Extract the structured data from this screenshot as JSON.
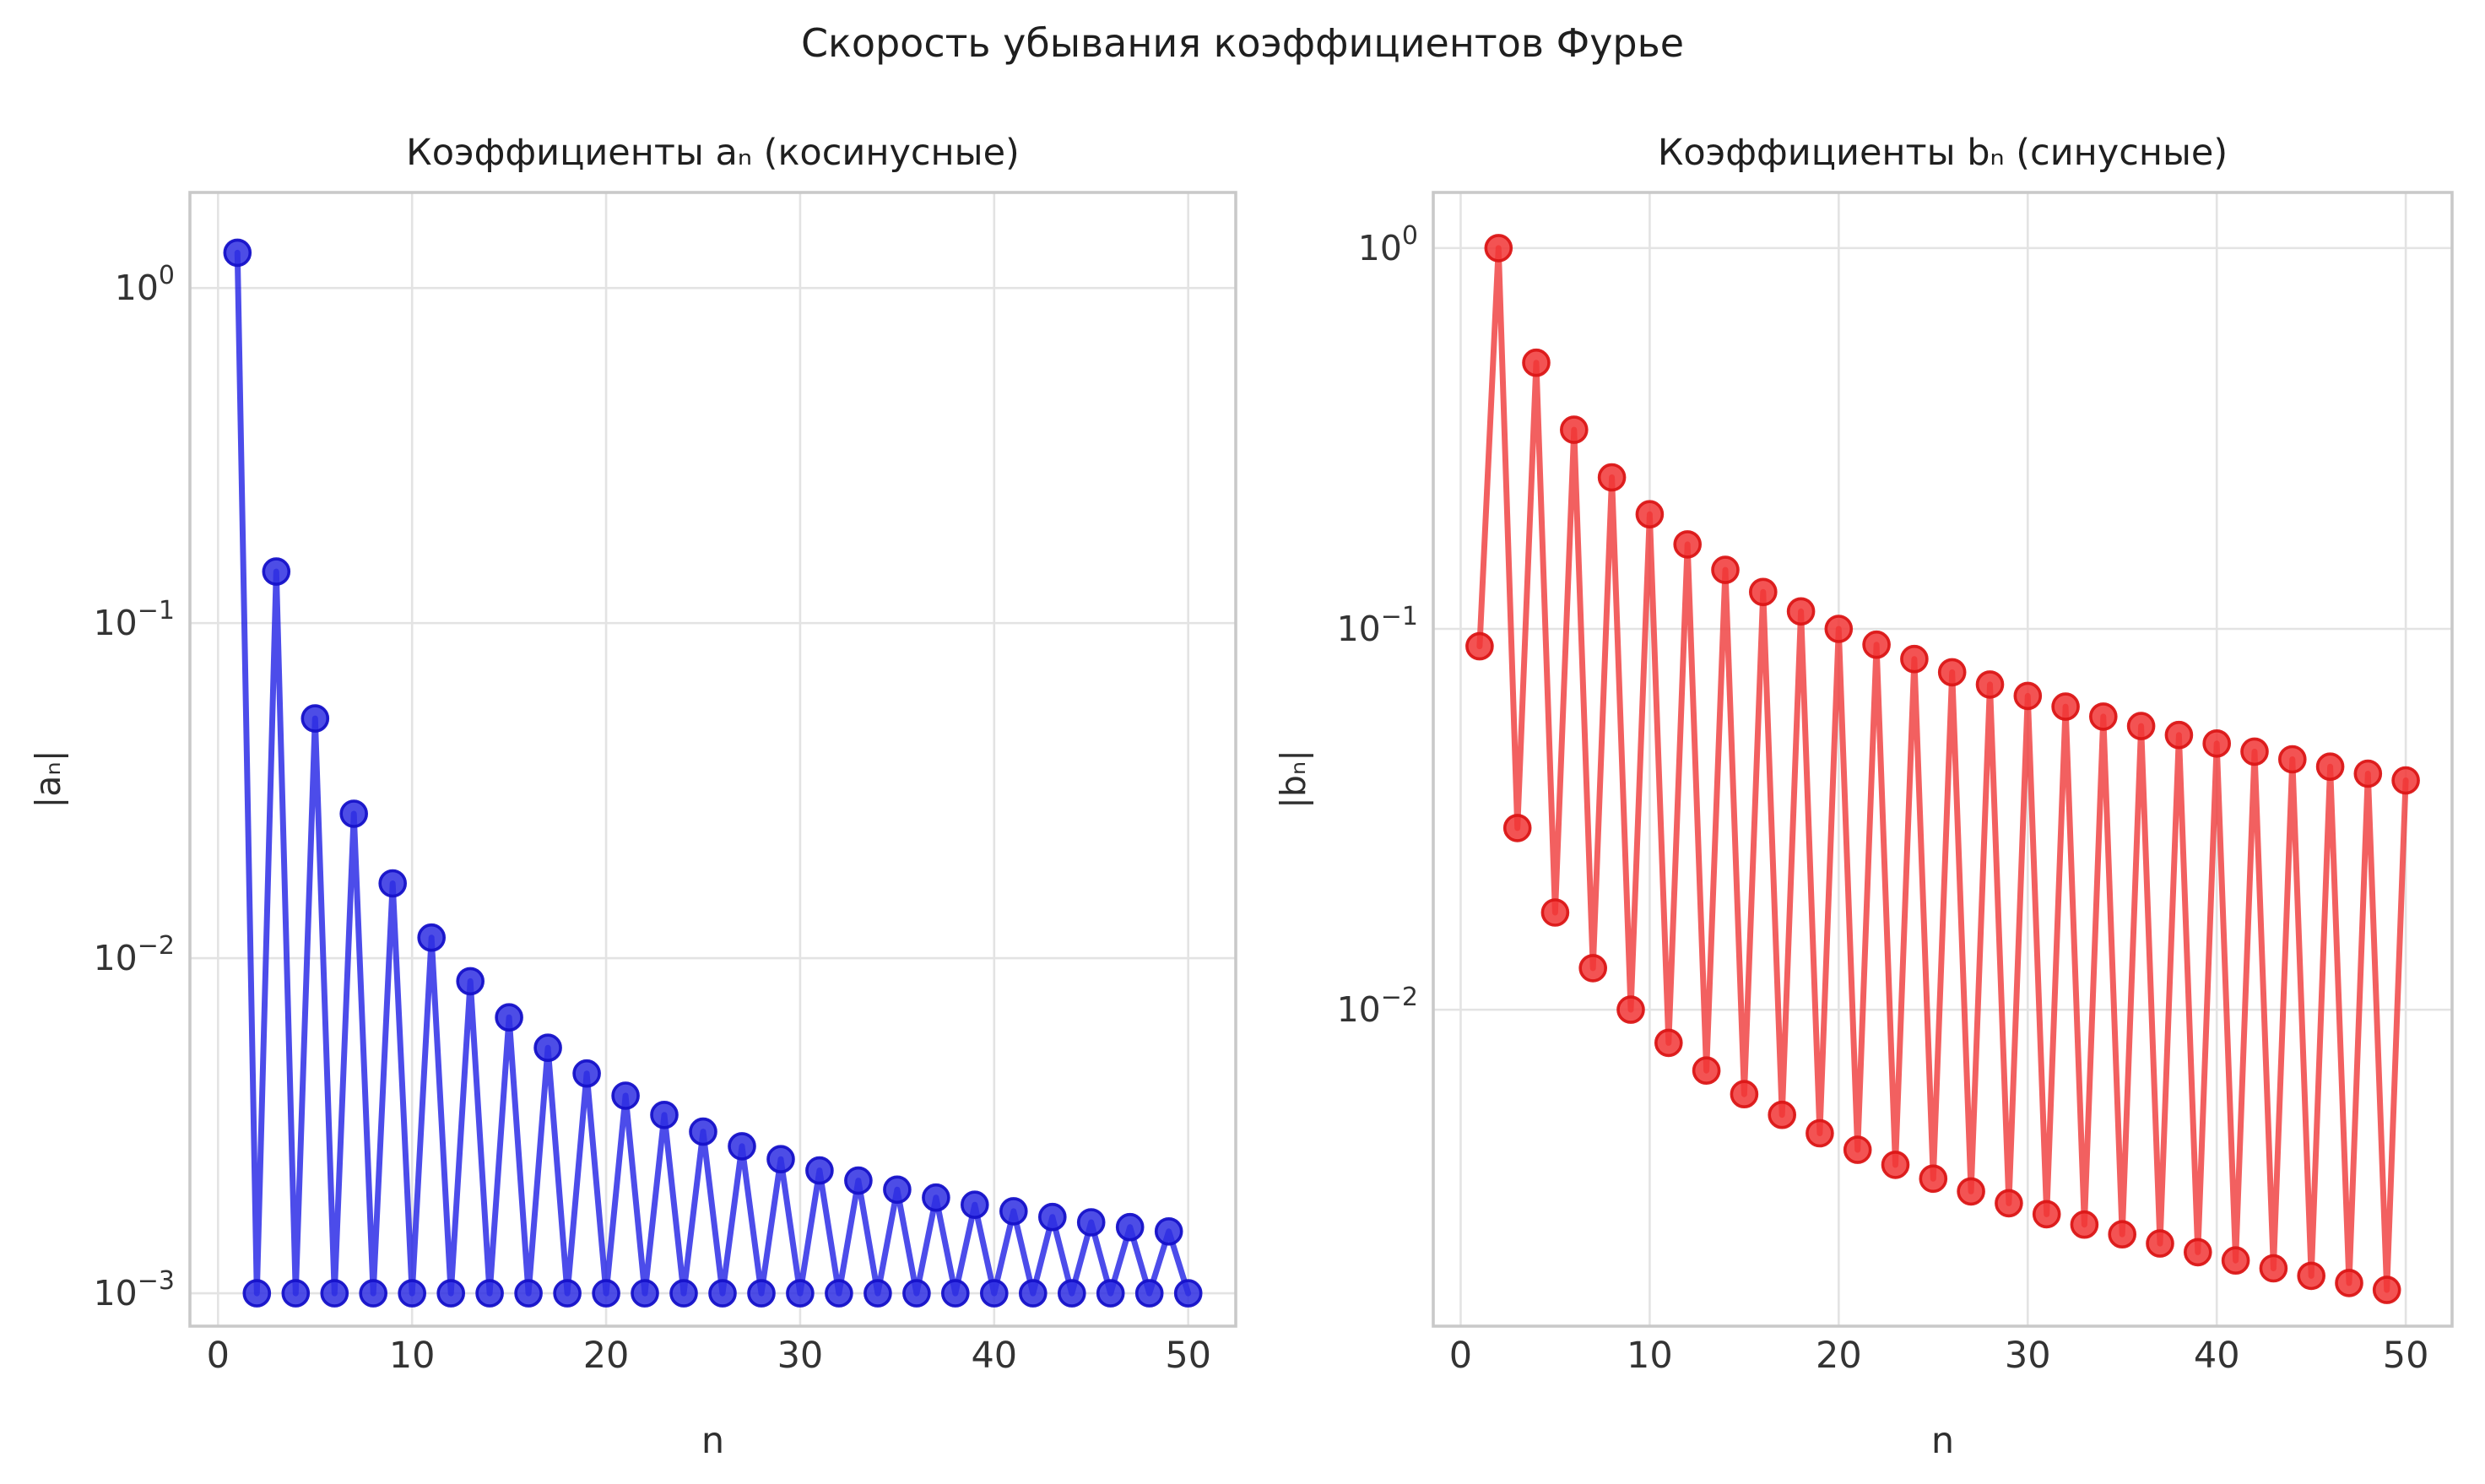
{
  "suptitle": "Скорость убывания коэффициентов Фурье",
  "colors": {
    "background": "#ffffff",
    "grid": "#e3e3e3",
    "spine": "#c9c9c9",
    "title_text": "#1f1f1f",
    "tick_text": "#333333",
    "blue_line": "#1a1ae4",
    "blue_marker_fill": "#2e2ee2",
    "blue_marker_edge": "#1511c9",
    "red_line": "#ee3333",
    "red_marker_fill": "#f13535",
    "red_marker_edge": "#db1616"
  },
  "chart_data": [
    {
      "type": "line",
      "yscale": "log",
      "title": "Коэффициенты aₙ (косинусные)",
      "xlabel": "n",
      "ylabel": "|aₙ|",
      "color_key": "blue",
      "grid": true,
      "legend": null,
      "xlim": [
        -1.45,
        52.45
      ],
      "ylim_log": [
        -3.098,
        0.285
      ],
      "x_ticks": [
        0,
        10,
        20,
        30,
        40,
        50
      ],
      "y_ticks": [
        {
          "base": "10",
          "exp": "0",
          "value": 1
        },
        {
          "base": "10",
          "exp": "−1",
          "value": 0.1
        },
        {
          "base": "10",
          "exp": "−2",
          "value": 0.01
        },
        {
          "base": "10",
          "exp": "−3",
          "value": 0.001
        }
      ],
      "x": [
        1,
        2,
        3,
        4,
        5,
        6,
        7,
        8,
        9,
        10,
        11,
        12,
        13,
        14,
        15,
        16,
        17,
        18,
        19,
        20,
        21,
        22,
        23,
        24,
        25,
        26,
        27,
        28,
        29,
        30,
        31,
        32,
        33,
        34,
        35,
        36,
        37,
        38,
        39,
        40,
        41,
        42,
        43,
        44,
        45,
        46,
        47,
        48,
        49,
        50
      ],
      "y": [
        1.27424,
        0.001,
        0.142471,
        0.001,
        0.05193,
        0.001,
        0.026984,
        0.001,
        0.016719,
        0.001,
        0.011523,
        0.001,
        0.008534,
        0.001,
        0.006659,
        0.001,
        0.005406,
        0.001,
        0.004527,
        0.001,
        0.003887,
        0.001,
        0.003407,
        0.001,
        0.003037,
        0.001,
        0.002747,
        0.001,
        0.002514,
        0.001,
        0.002325,
        0.001,
        0.002169,
        0.001,
        0.002039,
        0.001,
        0.00193,
        0.001,
        0.001837,
        0.001,
        0.001757,
        0.001,
        0.001689,
        0.001,
        0.001629,
        0.001,
        0.001576,
        0.001,
        0.00153,
        0.001
      ]
    },
    {
      "type": "line",
      "yscale": "log",
      "title": "Коэффициенты bₙ (синусные)",
      "xlabel": "n",
      "ylabel": "|bₙ|",
      "color_key": "red",
      "grid": true,
      "legend": null,
      "xlim": [
        -1.45,
        52.45
      ],
      "ylim_log": [
        -2.831,
        0.146
      ],
      "x_ticks": [
        0,
        10,
        20,
        30,
        40,
        50
      ],
      "y_ticks": [
        {
          "base": "10",
          "exp": "0",
          "value": 1
        },
        {
          "base": "10",
          "exp": "−1",
          "value": 0.1
        },
        {
          "base": "10",
          "exp": "−2",
          "value": 0.01
        }
      ],
      "x": [
        1,
        2,
        3,
        4,
        5,
        6,
        7,
        8,
        9,
        10,
        11,
        12,
        13,
        14,
        15,
        16,
        17,
        18,
        19,
        20,
        21,
        22,
        23,
        24,
        25,
        26,
        27,
        28,
        29,
        30,
        31,
        32,
        33,
        34,
        35,
        36,
        37,
        38,
        39,
        40,
        41,
        42,
        43,
        44,
        45,
        46,
        47,
        48,
        49,
        50
      ],
      "y": [
        0.09,
        1.0,
        0.03,
        0.5,
        0.018,
        0.333333,
        0.012857,
        0.25,
        0.01,
        0.2,
        0.008182,
        0.166667,
        0.006923,
        0.142857,
        0.006,
        0.125,
        0.005294,
        0.111111,
        0.004737,
        0.1,
        0.004286,
        0.090909,
        0.003913,
        0.083333,
        0.0036,
        0.076923,
        0.003333,
        0.071429,
        0.003103,
        0.066667,
        0.002903,
        0.0625,
        0.002727,
        0.058824,
        0.002571,
        0.055556,
        0.002432,
        0.052632,
        0.002308,
        0.05,
        0.002195,
        0.047619,
        0.002093,
        0.045455,
        0.002,
        0.043478,
        0.001915,
        0.041667,
        0.001837,
        0.04
      ]
    }
  ]
}
